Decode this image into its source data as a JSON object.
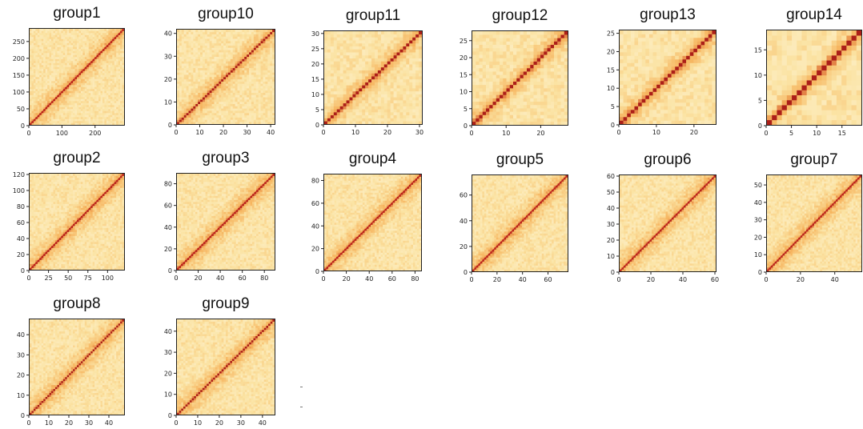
{
  "chart_data": [
    {
      "type": "heatmap",
      "title": "group1",
      "n": 290,
      "xticks": [
        0,
        100,
        200
      ],
      "yticks": [
        0,
        50,
        100,
        150,
        200,
        250
      ]
    },
    {
      "type": "heatmap",
      "title": "group10",
      "n": 42,
      "xticks": [
        0,
        10,
        20,
        30,
        40
      ],
      "yticks": [
        0,
        10,
        20,
        30,
        40
      ]
    },
    {
      "type": "heatmap",
      "title": "group11",
      "n": 31,
      "xticks": [
        0,
        10,
        20,
        30
      ],
      "yticks": [
        0,
        5,
        10,
        15,
        20,
        25,
        30
      ]
    },
    {
      "type": "heatmap",
      "title": "group12",
      "n": 28,
      "xticks": [
        0,
        10,
        20
      ],
      "yticks": [
        0,
        5,
        10,
        15,
        20,
        25
      ]
    },
    {
      "type": "heatmap",
      "title": "group13",
      "n": 26,
      "xticks": [
        0,
        10,
        20
      ],
      "yticks": [
        0,
        5,
        10,
        15,
        20,
        25
      ]
    },
    {
      "type": "heatmap",
      "title": "group14",
      "n": 19,
      "xticks": [
        0,
        5,
        10,
        15
      ],
      "yticks": [
        0,
        5,
        10,
        15
      ]
    },
    {
      "type": "heatmap",
      "title": "group2",
      "n": 122,
      "xticks": [
        0,
        25,
        50,
        75,
        100
      ],
      "yticks": [
        0,
        20,
        40,
        60,
        80,
        100,
        120
      ]
    },
    {
      "type": "heatmap",
      "title": "group3",
      "n": 90,
      "xticks": [
        0,
        20,
        40,
        60,
        80
      ],
      "yticks": [
        0,
        20,
        40,
        60,
        80
      ]
    },
    {
      "type": "heatmap",
      "title": "group4",
      "n": 86,
      "xticks": [
        0,
        20,
        40,
        60,
        80
      ],
      "yticks": [
        0,
        20,
        40,
        60,
        80
      ]
    },
    {
      "type": "heatmap",
      "title": "group5",
      "n": 76,
      "xticks": [
        0,
        20,
        40,
        60
      ],
      "yticks": [
        0,
        20,
        40,
        60
      ]
    },
    {
      "type": "heatmap",
      "title": "group6",
      "n": 61,
      "xticks": [
        0,
        20,
        40,
        60
      ],
      "yticks": [
        0,
        10,
        20,
        30,
        40,
        50,
        60
      ]
    },
    {
      "type": "heatmap",
      "title": "group7",
      "n": 56,
      "xticks": [
        0,
        20,
        40
      ],
      "yticks": [
        0,
        10,
        20,
        30,
        40,
        50
      ]
    },
    {
      "type": "heatmap",
      "title": "group8",
      "n": 48,
      "xticks": [
        0,
        10,
        20,
        30,
        40
      ],
      "yticks": [
        0,
        10,
        20,
        30,
        40
      ]
    },
    {
      "type": "heatmap",
      "title": "group9",
      "n": 46,
      "xticks": [
        0,
        10,
        20,
        30,
        40
      ],
      "yticks": [
        0,
        10,
        20,
        30,
        40
      ]
    }
  ],
  "colors": {
    "background": "#fbe3a3",
    "light": "#fdf3d4",
    "mid": "#f6b45e",
    "diagonal": "#c0261c",
    "diagonal_dark": "#7e0f10"
  }
}
